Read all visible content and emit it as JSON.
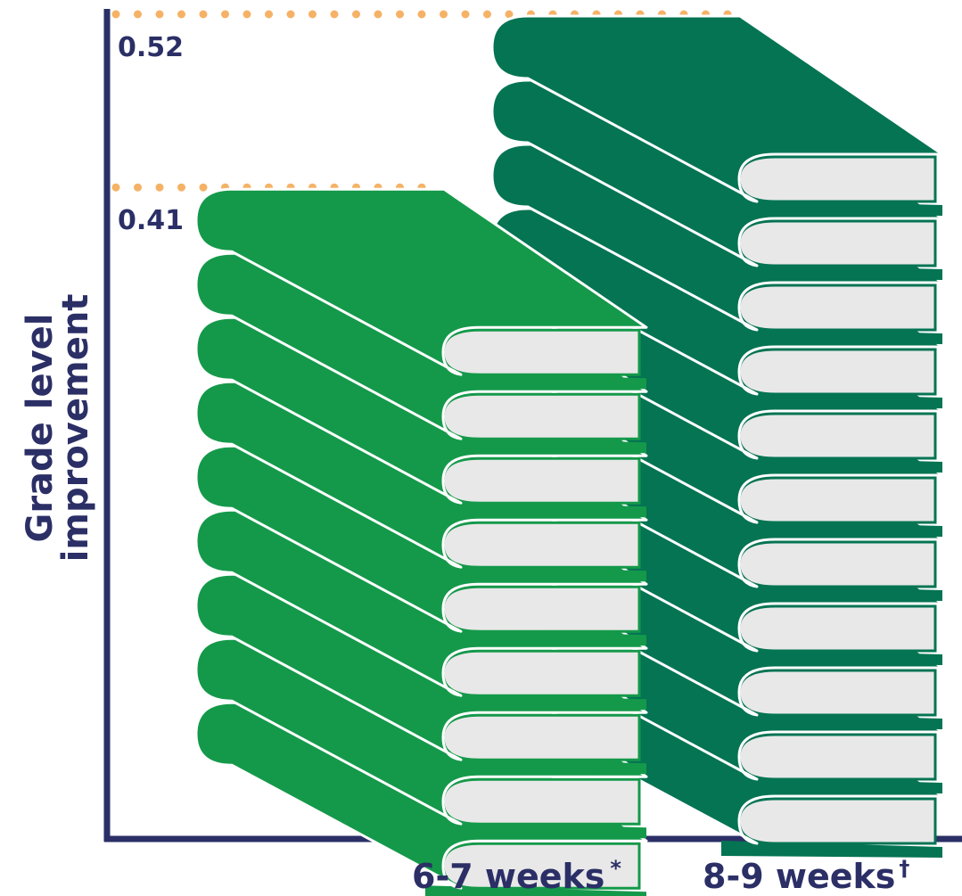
{
  "chart_data": {
    "type": "bar",
    "ylabel_line1": "Grade level",
    "ylabel_line2": "improvement",
    "categories": [
      "6-7 weeks",
      "8-9 weeks"
    ],
    "category_marks": [
      "*",
      "†"
    ],
    "values": [
      0.41,
      0.52
    ],
    "value_labels": [
      "0.41",
      "0.52"
    ],
    "ylim": [
      0,
      0.52
    ],
    "bar_style": "stacked-books",
    "grid": false,
    "legend": "none"
  },
  "colors": {
    "axis": "#2b2f66",
    "text": "#2b2f66",
    "reference_dots": "#f5b266",
    "book_light_green": "#14994a",
    "book_dark_green": "#047453",
    "pages": "#e8e8e8"
  },
  "icons": {
    "bar_mark": "book-icon"
  }
}
